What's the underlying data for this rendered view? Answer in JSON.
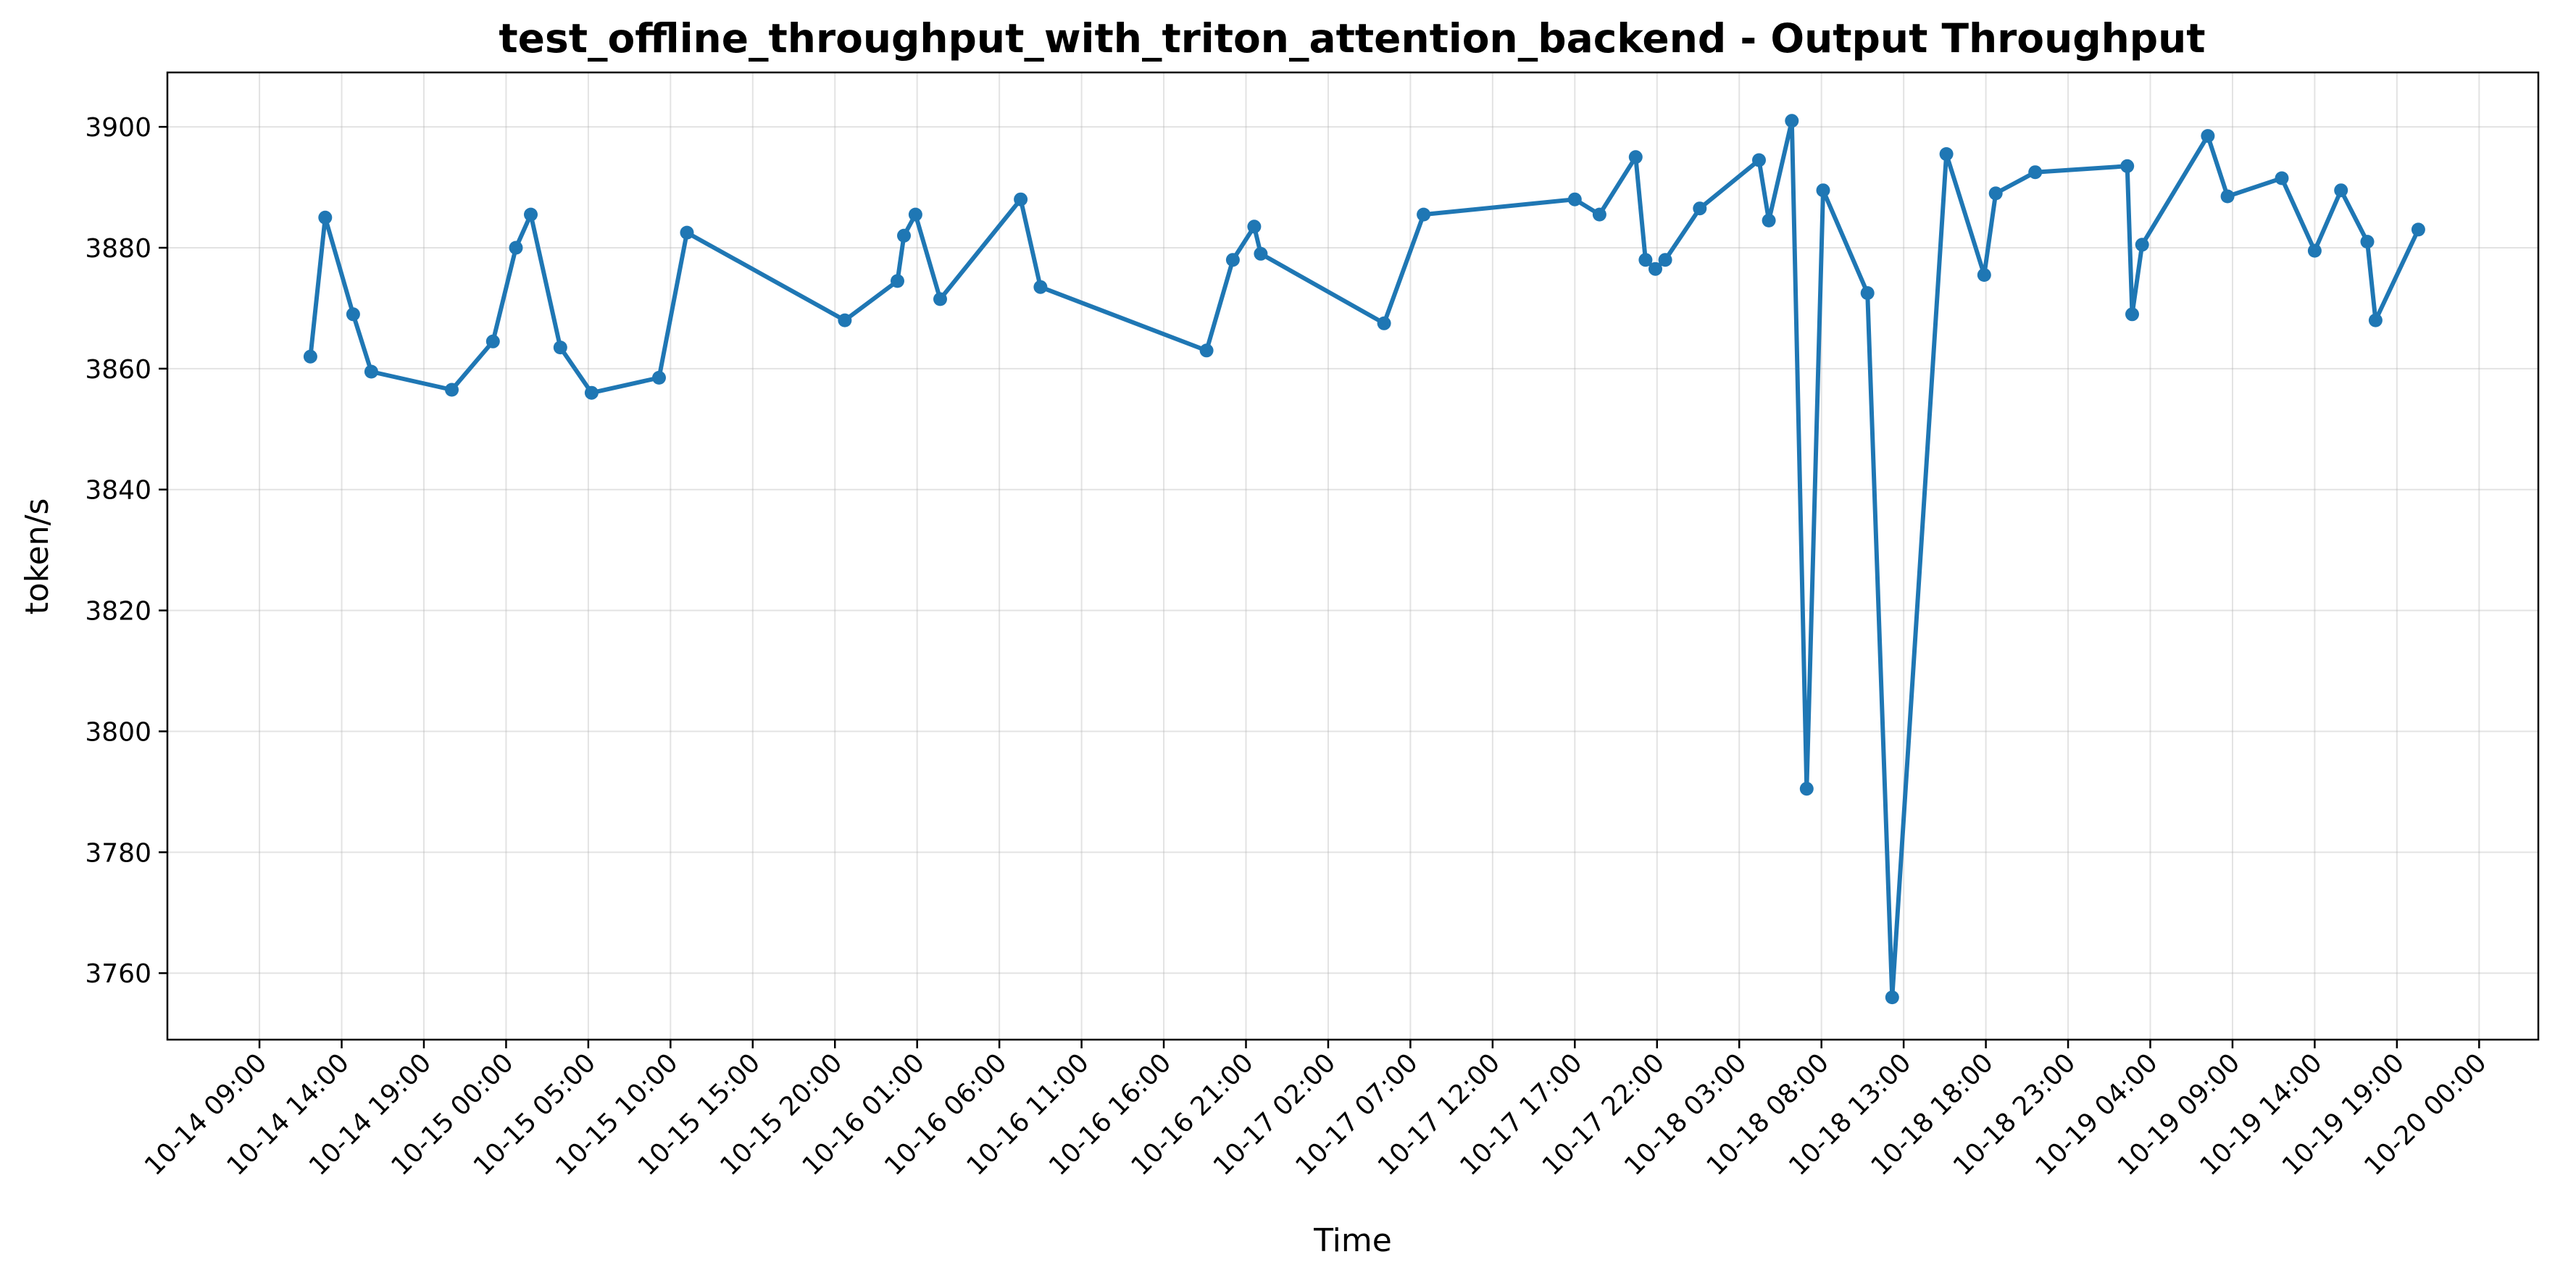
{
  "chart_data": {
    "type": "line",
    "title": "test_offline_throughput_with_triton_attention_backend - Output Throughput",
    "xlabel": "Time",
    "ylabel": "token/s",
    "grid": true,
    "xlim": [
      -5.6,
      138.6
    ],
    "ylim": [
      3749,
      3909
    ],
    "x_unit": "hours since 10-14 09:00",
    "x_ticks": [
      {
        "value": 0,
        "label": "10-14 09:00"
      },
      {
        "value": 5,
        "label": "10-14 14:00"
      },
      {
        "value": 10,
        "label": "10-14 19:00"
      },
      {
        "value": 15,
        "label": "10-15 00:00"
      },
      {
        "value": 20,
        "label": "10-15 05:00"
      },
      {
        "value": 25,
        "label": "10-15 10:00"
      },
      {
        "value": 30,
        "label": "10-15 15:00"
      },
      {
        "value": 35,
        "label": "10-15 20:00"
      },
      {
        "value": 40,
        "label": "10-16 01:00"
      },
      {
        "value": 45,
        "label": "10-16 06:00"
      },
      {
        "value": 50,
        "label": "10-16 11:00"
      },
      {
        "value": 55,
        "label": "10-16 16:00"
      },
      {
        "value": 60,
        "label": "10-16 21:00"
      },
      {
        "value": 65,
        "label": "10-17 02:00"
      },
      {
        "value": 70,
        "label": "10-17 07:00"
      },
      {
        "value": 75,
        "label": "10-17 12:00"
      },
      {
        "value": 80,
        "label": "10-17 17:00"
      },
      {
        "value": 85,
        "label": "10-17 22:00"
      },
      {
        "value": 90,
        "label": "10-18 03:00"
      },
      {
        "value": 95,
        "label": "10-18 08:00"
      },
      {
        "value": 100,
        "label": "10-18 13:00"
      },
      {
        "value": 105,
        "label": "10-18 18:00"
      },
      {
        "value": 110,
        "label": "10-18 23:00"
      },
      {
        "value": 115,
        "label": "10-19 04:00"
      },
      {
        "value": 120,
        "label": "10-19 09:00"
      },
      {
        "value": 125,
        "label": "10-19 14:00"
      },
      {
        "value": 130,
        "label": "10-19 19:00"
      },
      {
        "value": 135,
        "label": "10-20 00:00"
      }
    ],
    "y_ticks": [
      3760,
      3780,
      3800,
      3820,
      3840,
      3860,
      3880,
      3900
    ],
    "series": [
      {
        "name": "Output Throughput",
        "color": "#1f77b4",
        "points": [
          {
            "x": 3.1,
            "y": 3862
          },
          {
            "x": 4.0,
            "y": 3885
          },
          {
            "x": 5.7,
            "y": 3869
          },
          {
            "x": 6.8,
            "y": 3859.5
          },
          {
            "x": 11.7,
            "y": 3856.5
          },
          {
            "x": 14.2,
            "y": 3864.5
          },
          {
            "x": 15.6,
            "y": 3880
          },
          {
            "x": 16.5,
            "y": 3885.5
          },
          {
            "x": 18.3,
            "y": 3863.5
          },
          {
            "x": 20.2,
            "y": 3856
          },
          {
            "x": 24.3,
            "y": 3858.5
          },
          {
            "x": 26.0,
            "y": 3882.5
          },
          {
            "x": 35.6,
            "y": 3868
          },
          {
            "x": 38.8,
            "y": 3874.5
          },
          {
            "x": 39.2,
            "y": 3882
          },
          {
            "x": 39.9,
            "y": 3885.5
          },
          {
            "x": 41.4,
            "y": 3871.5
          },
          {
            "x": 46.3,
            "y": 3888
          },
          {
            "x": 47.5,
            "y": 3873.5
          },
          {
            "x": 57.6,
            "y": 3863
          },
          {
            "x": 59.2,
            "y": 3878
          },
          {
            "x": 60.5,
            "y": 3883.5
          },
          {
            "x": 60.9,
            "y": 3879
          },
          {
            "x": 68.4,
            "y": 3867.5
          },
          {
            "x": 70.8,
            "y": 3885.5
          },
          {
            "x": 80.0,
            "y": 3888
          },
          {
            "x": 81.5,
            "y": 3885.5
          },
          {
            "x": 83.7,
            "y": 3895
          },
          {
            "x": 84.3,
            "y": 3878
          },
          {
            "x": 84.9,
            "y": 3876.5
          },
          {
            "x": 85.5,
            "y": 3878
          },
          {
            "x": 87.6,
            "y": 3886.5
          },
          {
            "x": 91.2,
            "y": 3894.5
          },
          {
            "x": 91.8,
            "y": 3884.5
          },
          {
            "x": 93.2,
            "y": 3901
          },
          {
            "x": 94.1,
            "y": 3790.5
          },
          {
            "x": 95.1,
            "y": 3889.5
          },
          {
            "x": 97.8,
            "y": 3872.5
          },
          {
            "x": 99.3,
            "y": 3756
          },
          {
            "x": 102.6,
            "y": 3895.5
          },
          {
            "x": 104.9,
            "y": 3875.5
          },
          {
            "x": 105.6,
            "y": 3889
          },
          {
            "x": 108.0,
            "y": 3892.5
          },
          {
            "x": 113.6,
            "y": 3893.5
          },
          {
            "x": 113.9,
            "y": 3869
          },
          {
            "x": 114.5,
            "y": 3880.5
          },
          {
            "x": 118.5,
            "y": 3898.5
          },
          {
            "x": 119.7,
            "y": 3888.5
          },
          {
            "x": 123.0,
            "y": 3891.5
          },
          {
            "x": 125.0,
            "y": 3879.5
          },
          {
            "x": 126.6,
            "y": 3889.5
          },
          {
            "x": 128.2,
            "y": 3881
          },
          {
            "x": 128.7,
            "y": 3868
          },
          {
            "x": 131.3,
            "y": 3883
          }
        ]
      }
    ]
  }
}
